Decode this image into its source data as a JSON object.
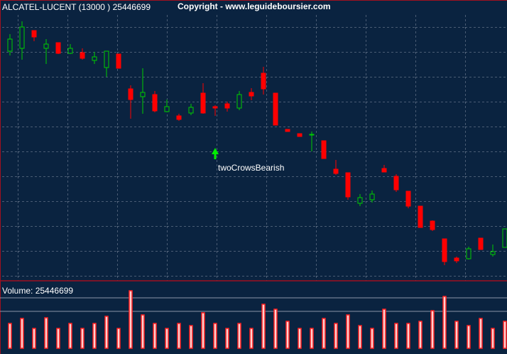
{
  "chart_data": [
    {
      "type": "candlestick",
      "title": "ALCATEL-LUCENT (13000 ) 25446699",
      "subtitle": "Copyright - www.leguideboursier.com",
      "annotation": "twoCrowsBearish",
      "up_color": "#00cc00",
      "down_color": "#ff0000",
      "ylim": [
        0,
        395
      ],
      "open": [
        323,
        327,
        352,
        327,
        335,
        320,
        321,
        310,
        300,
        319,
        270,
        259,
        262,
        238,
        232,
        236,
        264,
        245,
        249,
        243,
        265,
        292,
        264,
        213,
        207,
        205,
        197,
        157,
        152,
        109,
        114,
        158,
        147,
        126,
        105,
        84,
        59,
        32,
        31,
        60,
        37,
        47
      ],
      "high": [
        347,
        365,
        352,
        340,
        335,
        333,
        327,
        322,
        323,
        319,
        275,
        299,
        267,
        255,
        235,
        249,
        278,
        247,
        252,
        267,
        271,
        301,
        264,
        213,
        207,
        210,
        197,
        170,
        152,
        122,
        127,
        163,
        150,
        126,
        105,
        85,
        59,
        34,
        48,
        60,
        51,
        73
      ],
      "low": [
        317,
        311,
        337,
        305,
        319,
        319,
        311,
        305,
        287,
        299,
        228,
        235,
        237,
        237,
        225,
        233,
        235,
        232,
        238,
        240,
        254,
        262,
        219,
        210,
        203,
        182,
        172,
        149,
        114,
        105,
        110,
        153,
        125,
        102,
        75,
        70,
        22,
        25,
        30,
        44,
        34,
        47
      ],
      "close": [
        340,
        357,
        343,
        333,
        320,
        327,
        313,
        315,
        323,
        299,
        255,
        265,
        239,
        245,
        227,
        244,
        236,
        243,
        243,
        262,
        260,
        270,
        219,
        210,
        203,
        206,
        172,
        151,
        118,
        117,
        122,
        153,
        128,
        105,
        75,
        72,
        27,
        28,
        45,
        44,
        41,
        73
      ]
    },
    {
      "type": "bar",
      "title": "Volume: 25446699",
      "color": "#ff2020",
      "ylim": [
        0,
        90
      ],
      "values": [
        35,
        42,
        28,
        43,
        28,
        35,
        28,
        35,
        45,
        28,
        81,
        47,
        35,
        28,
        35,
        32,
        50,
        35,
        28,
        35,
        28,
        62,
        55,
        38,
        28,
        28,
        42,
        35,
        47,
        32,
        28,
        55,
        35,
        35,
        38,
        53,
        73,
        38,
        32,
        42,
        28,
        38
      ]
    }
  ]
}
